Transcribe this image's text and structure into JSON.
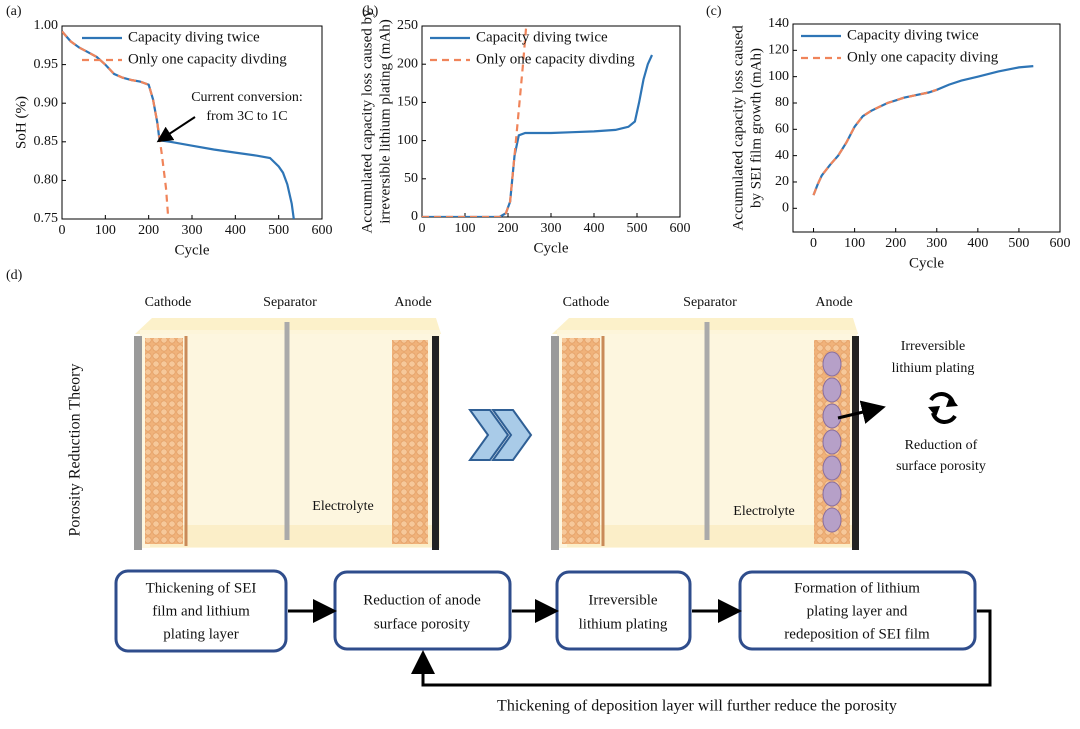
{
  "chart_data": [
    {
      "type": "line",
      "panel": "(a)",
      "xlabel": "Cycle",
      "ylabel": [
        "SoH (%)"
      ],
      "xlim": [
        0,
        600
      ],
      "xticks": [
        0,
        100,
        200,
        300,
        400,
        500,
        600
      ],
      "ylim": [
        0.75,
        1.0
      ],
      "yticks": [
        0.75,
        {
          "value": 0.8,
          "label": "0.80"
        },
        0.85,
        {
          "value": 0.9,
          "label": "0.90"
        },
        0.95,
        {
          "value": 1.0,
          "label": "1.00"
        }
      ],
      "legend": "upper right",
      "annotation": [
        "Current conversion:",
        "from 3C to 1C"
      ],
      "series": [
        {
          "name": "Capacity diving twice",
          "color": "#2e75b6",
          "dashed": false,
          "x": [
            0,
            20,
            40,
            60,
            80,
            100,
            120,
            140,
            160,
            180,
            200,
            210,
            220,
            225,
            250,
            300,
            350,
            400,
            450,
            480,
            500,
            510,
            520,
            530,
            535
          ],
          "values": [
            0.993,
            0.98,
            0.972,
            0.966,
            0.96,
            0.95,
            0.938,
            0.933,
            0.93,
            0.928,
            0.924,
            0.905,
            0.875,
            0.852,
            0.85,
            0.845,
            0.84,
            0.836,
            0.832,
            0.829,
            0.818,
            0.81,
            0.795,
            0.77,
            0.75
          ]
        },
        {
          "name": "Only one capacity divding",
          "color": "#f0845a",
          "dashed": true,
          "x": [
            0,
            20,
            40,
            60,
            80,
            100,
            120,
            140,
            160,
            180,
            200,
            210,
            220,
            230,
            240,
            245
          ],
          "values": [
            0.993,
            0.98,
            0.972,
            0.966,
            0.96,
            0.95,
            0.938,
            0.933,
            0.93,
            0.928,
            0.924,
            0.905,
            0.875,
            0.835,
            0.79,
            0.752
          ]
        }
      ]
    },
    {
      "type": "line",
      "panel": "(b)",
      "xlabel": "Cycle",
      "ylabel": [
        "Accumulated capacity loss caused by",
        "irreversible lithium plating (mAh)"
      ],
      "xlim": [
        0,
        600
      ],
      "xticks": [
        0,
        100,
        200,
        300,
        400,
        500,
        600
      ],
      "ylim": [
        0,
        250
      ],
      "yticks": [
        0,
        50,
        100,
        150,
        200,
        250
      ],
      "legend": "upper left",
      "series": [
        {
          "name": "Capacity diving twice",
          "color": "#2e75b6",
          "dashed": false,
          "x": [
            0,
            100,
            180,
            195,
            205,
            215,
            225,
            240,
            300,
            350,
            400,
            450,
            480,
            495,
            505,
            515,
            525,
            535
          ],
          "values": [
            0,
            0,
            0,
            5,
            20,
            80,
            107,
            110,
            110,
            111,
            112,
            114,
            118,
            125,
            150,
            180,
            200,
            212
          ]
        },
        {
          "name": "Only one capacity divding",
          "color": "#f0845a",
          "dashed": true,
          "x": [
            0,
            100,
            180,
            195,
            205,
            215,
            225,
            235,
            242
          ],
          "values": [
            0,
            0,
            0,
            5,
            20,
            80,
            140,
            200,
            248
          ]
        }
      ]
    },
    {
      "type": "line",
      "panel": "(c)",
      "xlabel": "Cycle",
      "ylabel": [
        "Accumulated capacity loss caused",
        "by SEI film growth (mAh)"
      ],
      "xlim": [
        -50,
        600
      ],
      "xticks": [
        0,
        100,
        200,
        300,
        400,
        500,
        600
      ],
      "ylim": [
        -18,
        140
      ],
      "yticks": [
        0,
        20,
        40,
        60,
        80,
        100,
        120,
        140
      ],
      "legend": "upper left",
      "series": [
        {
          "name": "Capacity diving twice",
          "color": "#2e75b6",
          "dashed": false,
          "x": [
            0,
            10,
            20,
            40,
            60,
            80,
            100,
            120,
            140,
            160,
            180,
            200,
            220,
            250,
            280,
            300,
            330,
            360,
            400,
            450,
            500,
            535
          ],
          "values": [
            10,
            18,
            25,
            33,
            40,
            50,
            62,
            70,
            74,
            77,
            80,
            82,
            84,
            86,
            88,
            90,
            94,
            97,
            100,
            104,
            107,
            108
          ]
        },
        {
          "name": "Only one capacity diving",
          "color": "#f0845a",
          "dashed": true,
          "x": [
            0,
            10,
            20,
            40,
            60,
            80,
            100,
            120,
            140,
            160,
            180,
            200,
            220,
            250,
            280,
            300
          ],
          "values": [
            10,
            18,
            25,
            33,
            40,
            50,
            62,
            70,
            74,
            77,
            80,
            82,
            84,
            86,
            88,
            90
          ]
        }
      ]
    }
  ],
  "diagram": {
    "panel": "(d)",
    "side_title": "Porosity Reduction Theory",
    "before": {
      "labels": [
        "Cathode",
        "Separator",
        "Anode"
      ],
      "electrolyte": "Electrolyte"
    },
    "after": {
      "labels": [
        "Cathode",
        "Separator",
        "Anode"
      ],
      "electrolyte": "Electrolyte"
    },
    "callout": [
      "Irreversible",
      "lithium plating"
    ],
    "effect": [
      "Reduction of",
      "surface porosity"
    ],
    "steps": [
      [
        "Thickening of SEI",
        "film and lithium",
        "plating layer"
      ],
      [
        "Reduction of anode",
        "surface porosity"
      ],
      [
        "Irreversible",
        "lithium plating"
      ],
      [
        "Formation of lithium",
        "plating layer and",
        "redeposition of SEI film"
      ]
    ],
    "loop_note": "Thickening of deposition layer will further reduce the porosity"
  }
}
